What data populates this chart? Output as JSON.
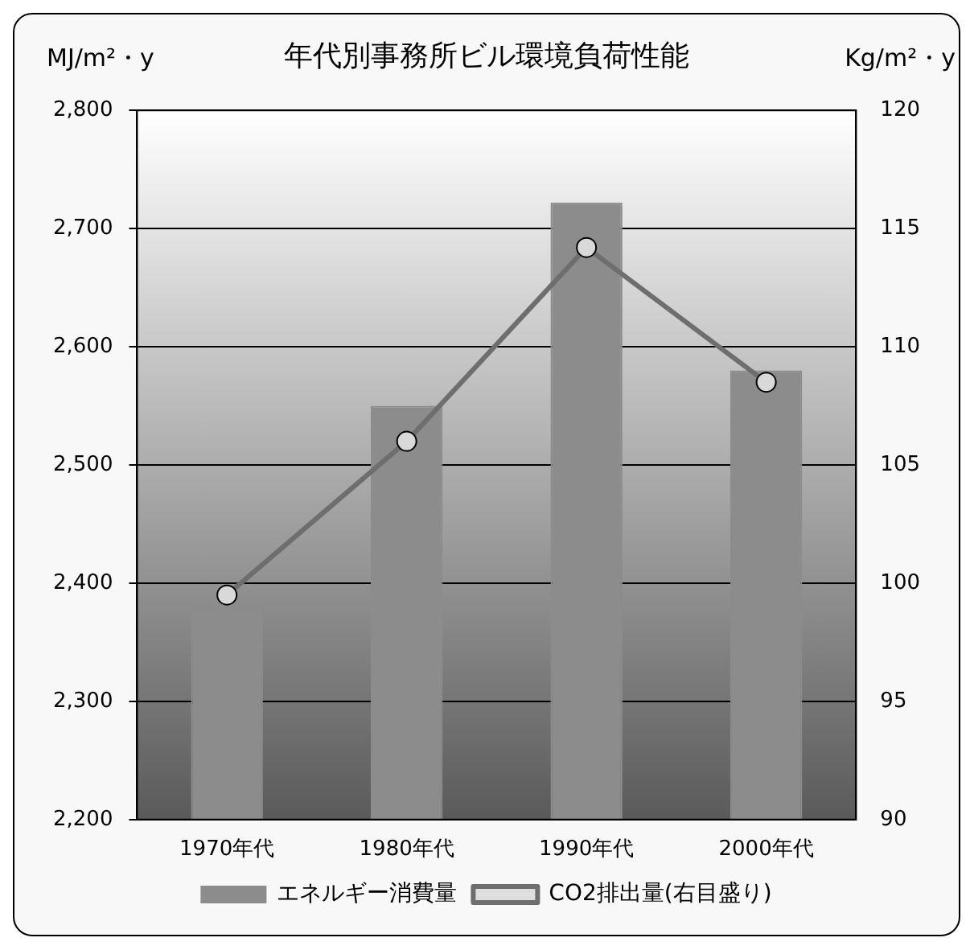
{
  "chart_data": {
    "type": "bar",
    "title": "年代別事務所ビル環境負荷性能",
    "ylabel": "MJ/m²・y",
    "y2label": "Kg/m²・y",
    "categories": [
      "1970年代",
      "1980年代",
      "1990年代",
      "2000年代"
    ],
    "series": [
      {
        "name": "エネルギー消費量",
        "color": "#8c8c8c",
        "values": [
          2378,
          2550,
          2722,
          2580
        ]
      },
      {
        "name": "CO2排出量(右目盛り)",
        "type": "line",
        "axis": "y2",
        "color": "#6e6e6e",
        "values": [
          99.5,
          106.0,
          114.2,
          108.5
        ]
      }
    ],
    "ylim": [
      2200,
      2800
    ],
    "yticks": [
      {
        "value": 2200,
        "label": "2,200"
      },
      {
        "value": 2300,
        "label": "2,300"
      },
      {
        "value": 2400,
        "label": "2,400"
      },
      {
        "value": 2500,
        "label": "2,500"
      },
      {
        "value": 2600,
        "label": "2,600"
      },
      {
        "value": 2700,
        "label": "2,700"
      },
      {
        "value": 2800,
        "label": "2,800"
      }
    ],
    "y2lim": [
      90,
      120
    ],
    "y2ticks": [
      90,
      95,
      100,
      105,
      110,
      115,
      120
    ],
    "grid": "y",
    "legend": "bottom",
    "marker": "circle"
  }
}
